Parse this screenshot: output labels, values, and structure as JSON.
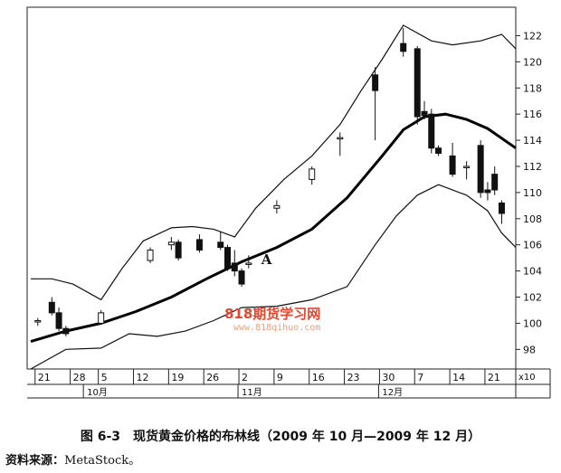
{
  "caption": {
    "figure": "图 6-3　现货黄金价格的布林线（2009 年 10 月—2009 年 12 月）",
    "source_label": "资料来源：",
    "source_value": "MetaStock。"
  },
  "watermark": {
    "logo": "818期货学习网",
    "url": "www.818qihuo.com"
  },
  "chart_data": {
    "type": "candlestick",
    "y_axis": {
      "min": 96.5,
      "max": 123,
      "ticks": [
        98,
        100,
        102,
        104,
        106,
        108,
        110,
        112,
        114,
        116,
        118,
        120,
        122
      ],
      "position": "right"
    },
    "y_multiplier_label": "x10",
    "x_tick_labels": [
      "21",
      "28",
      "5",
      "12",
      "19",
      "26",
      "2",
      "9",
      "16",
      "23",
      "30",
      "7",
      "14",
      "21"
    ],
    "x_tick_index": [
      1,
      6,
      10,
      15,
      20,
      25,
      30,
      35,
      40,
      45,
      50,
      55,
      60,
      65
    ],
    "months": [
      {
        "label": "10月",
        "index": 8
      },
      {
        "label": "11月",
        "index": 30
      },
      {
        "label": "12月",
        "index": 50
      }
    ],
    "annotations": [
      {
        "text": "A",
        "index": 31,
        "value": 104.8
      }
    ],
    "index_range": [
      0,
      69
    ],
    "candles": [
      {
        "i": 1,
        "o": 100.2,
        "h": 100.4,
        "l": 99.8,
        "c": 100.2
      },
      {
        "i": 3,
        "o": 101.6,
        "h": 102.0,
        "l": 100.6,
        "c": 100.8
      },
      {
        "i": 4,
        "o": 100.8,
        "h": 101.2,
        "l": 99.4,
        "c": 99.6
      },
      {
        "i": 5,
        "o": 99.6,
        "h": 99.8,
        "l": 99.0,
        "c": 99.2
      },
      {
        "i": 10,
        "o": 100.0,
        "h": 101.0,
        "l": 99.9,
        "c": 100.8
      },
      {
        "i": 17,
        "o": 104.8,
        "h": 105.8,
        "l": 104.6,
        "c": 105.6
      },
      {
        "i": 20,
        "o": 106.0,
        "h": 106.6,
        "l": 105.6,
        "c": 106.2
      },
      {
        "i": 21,
        "o": 106.2,
        "h": 106.4,
        "l": 104.8,
        "c": 105.0
      },
      {
        "i": 24,
        "o": 106.4,
        "h": 106.8,
        "l": 105.4,
        "c": 105.6
      },
      {
        "i": 27,
        "o": 106.2,
        "h": 107.0,
        "l": 105.6,
        "c": 105.8
      },
      {
        "i": 28,
        "o": 105.8,
        "h": 106.0,
        "l": 104.0,
        "c": 104.2
      },
      {
        "i": 29,
        "o": 104.6,
        "h": 105.6,
        "l": 103.6,
        "c": 104.0
      },
      {
        "i": 30,
        "o": 104.0,
        "h": 104.2,
        "l": 102.8,
        "c": 103.0
      },
      {
        "i": 31,
        "o": 104.6,
        "h": 105.2,
        "l": 104.2,
        "c": 104.6
      },
      {
        "i": 35,
        "o": 108.8,
        "h": 109.4,
        "l": 108.4,
        "c": 109.0
      },
      {
        "i": 40,
        "o": 111.0,
        "h": 112.0,
        "l": 110.6,
        "c": 111.8
      },
      {
        "i": 44,
        "o": 114.2,
        "h": 114.6,
        "l": 112.8,
        "c": 114.2
      },
      {
        "i": 49,
        "o": 119.0,
        "h": 119.6,
        "l": 114.0,
        "c": 117.8
      },
      {
        "i": 53,
        "o": 121.4,
        "h": 122.6,
        "l": 120.4,
        "c": 120.8
      },
      {
        "i": 55,
        "o": 121.0,
        "h": 121.2,
        "l": 115.2,
        "c": 115.8
      },
      {
        "i": 56,
        "o": 116.2,
        "h": 117.0,
        "l": 115.6,
        "c": 115.9
      },
      {
        "i": 57,
        "o": 116.0,
        "h": 116.4,
        "l": 113.0,
        "c": 113.4
      },
      {
        "i": 58,
        "o": 113.4,
        "h": 113.6,
        "l": 112.8,
        "c": 113.0
      },
      {
        "i": 60,
        "o": 112.8,
        "h": 113.8,
        "l": 111.2,
        "c": 111.4
      },
      {
        "i": 62,
        "o": 112.0,
        "h": 112.4,
        "l": 111.0,
        "c": 112.0
      },
      {
        "i": 64,
        "o": 113.6,
        "h": 114.0,
        "l": 109.6,
        "c": 110.0
      },
      {
        "i": 65,
        "o": 110.2,
        "h": 110.8,
        "l": 109.4,
        "c": 110.0
      },
      {
        "i": 66,
        "o": 111.4,
        "h": 112.0,
        "l": 109.8,
        "c": 110.2
      },
      {
        "i": 67,
        "o": 109.2,
        "h": 109.4,
        "l": 107.6,
        "c": 108.4
      }
    ],
    "middle_band": [
      [
        0,
        98.6
      ],
      [
        5,
        99.4
      ],
      [
        10,
        100.0
      ],
      [
        15,
        100.9
      ],
      [
        20,
        102.0
      ],
      [
        25,
        103.4
      ],
      [
        30,
        104.7
      ],
      [
        35,
        105.8
      ],
      [
        40,
        107.2
      ],
      [
        45,
        109.6
      ],
      [
        50,
        112.8
      ],
      [
        53,
        114.8
      ],
      [
        56,
        115.8
      ],
      [
        59,
        116.0
      ],
      [
        62,
        115.6
      ],
      [
        65,
        114.9
      ],
      [
        69,
        113.4
      ]
    ],
    "upper_band": [
      [
        0,
        103.4
      ],
      [
        3,
        103.4
      ],
      [
        6,
        103.0
      ],
      [
        10,
        101.8
      ],
      [
        13,
        104.2
      ],
      [
        16,
        106.3
      ],
      [
        20,
        107.3
      ],
      [
        23,
        107.4
      ],
      [
        26,
        107.2
      ],
      [
        29,
        106.6
      ],
      [
        32,
        108.8
      ],
      [
        36,
        111.0
      ],
      [
        40,
        112.8
      ],
      [
        44,
        115.2
      ],
      [
        47,
        117.8
      ],
      [
        50,
        120.2
      ],
      [
        53,
        122.8
      ],
      [
        57,
        121.6
      ],
      [
        60,
        121.3
      ],
      [
        64,
        121.6
      ],
      [
        67,
        122.1
      ],
      [
        69,
        121.0
      ]
    ],
    "lower_band": [
      [
        0,
        96.5
      ],
      [
        5,
        98.0
      ],
      [
        10,
        98.1
      ],
      [
        14,
        99.2
      ],
      [
        18,
        99.0
      ],
      [
        22,
        99.4
      ],
      [
        26,
        100.2
      ],
      [
        30,
        101.2
      ],
      [
        35,
        101.3
      ],
      [
        40,
        101.8
      ],
      [
        45,
        102.8
      ],
      [
        49,
        106.0
      ],
      [
        52,
        108.2
      ],
      [
        55,
        109.8
      ],
      [
        58,
        110.6
      ],
      [
        62,
        109.8
      ],
      [
        65,
        108.6
      ],
      [
        67,
        106.9
      ],
      [
        69,
        105.8
      ]
    ]
  }
}
